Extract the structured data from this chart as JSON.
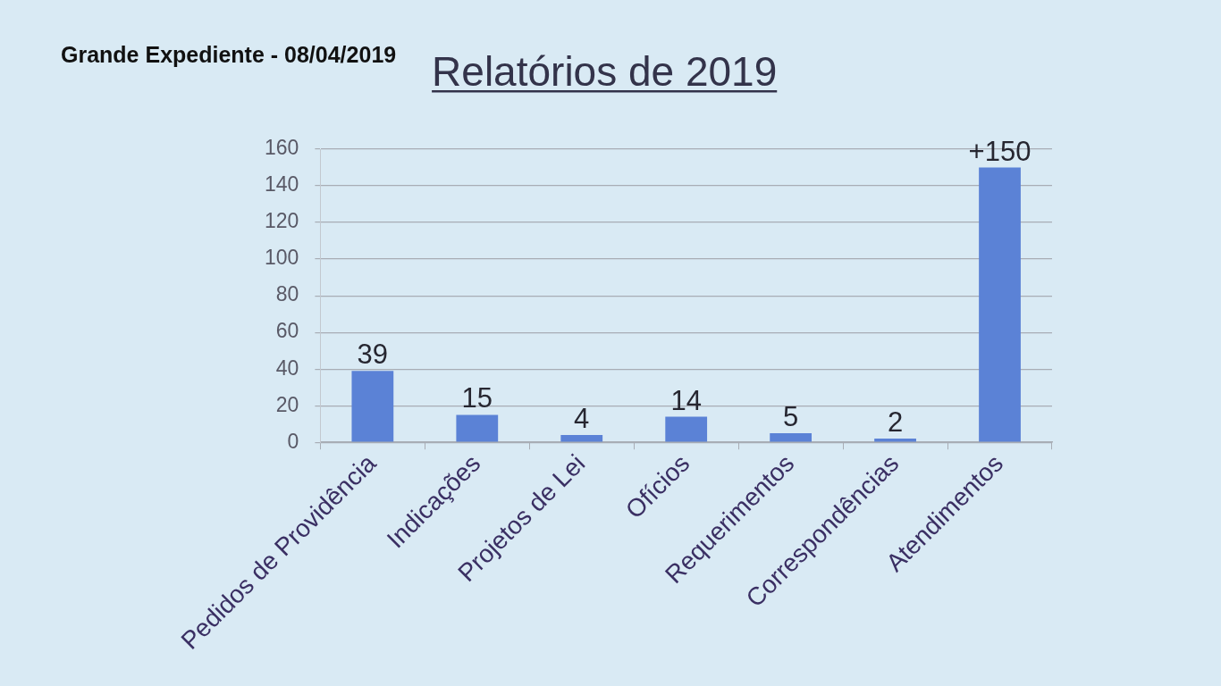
{
  "chart_data": {
    "type": "bar",
    "title": "Relatórios de 2019",
    "categories": [
      "Pedidos de Providência",
      "Indicações",
      "Projetos de Lei",
      "Ofícios",
      "Requerimentos",
      "Correspondências",
      "Atendimentos"
    ],
    "values": [
      39,
      15,
      4,
      14,
      5,
      2,
      150
    ],
    "color": "#5b82d6",
    "value_labels": [
      "39",
      "15",
      "4",
      "14",
      "5",
      "2",
      "+150"
    ],
    "ylim": [
      0,
      160
    ],
    "yticks": [
      0,
      20,
      40,
      60,
      80,
      100,
      120,
      140,
      160
    ],
    "grid": "y",
    "annotations": [
      "Grande Expediente - 08/04/2019"
    ]
  }
}
